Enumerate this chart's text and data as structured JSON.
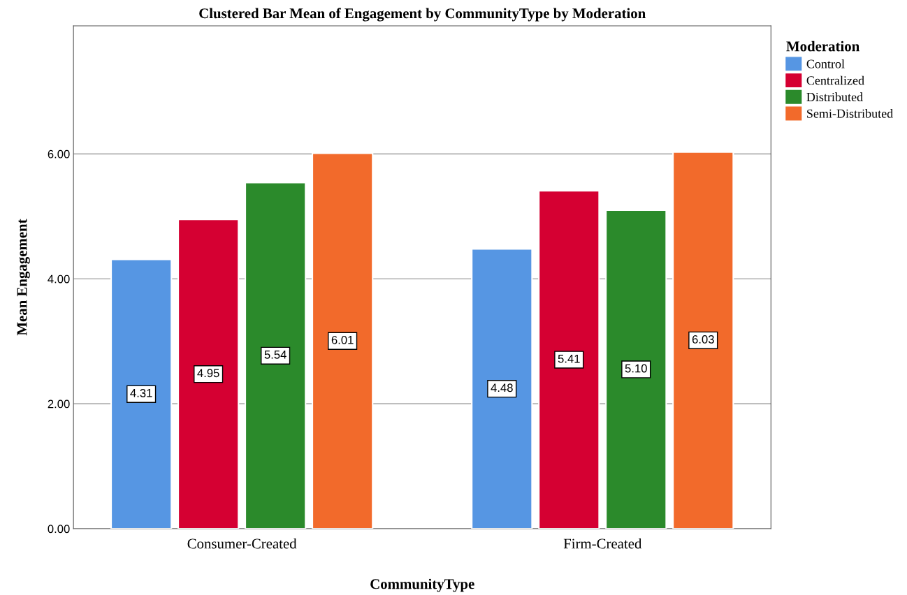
{
  "chart_data": {
    "type": "bar",
    "title": "Clustered Bar Mean of Engagement by CommunityType by Moderation",
    "xlabel": "CommunityType",
    "ylabel": "Mean Engagement",
    "legend_title": "Moderation",
    "categories": [
      "Consumer-Created",
      "Firm-Created"
    ],
    "series": [
      {
        "name": "Control",
        "color": "#5696e3",
        "values": [
          4.31,
          4.48
        ],
        "value_labels": [
          "4.31",
          "4.48"
        ]
      },
      {
        "name": "Centralized",
        "color": "#d50032",
        "values": [
          4.95,
          5.41
        ],
        "value_labels": [
          "4.95",
          "5.41"
        ]
      },
      {
        "name": "Distributed",
        "color": "#2b8a2b",
        "values": [
          5.54,
          5.1
        ],
        "value_labels": [
          "5.54",
          "5.10"
        ]
      },
      {
        "name": "Semi-Distributed",
        "color": "#f26a2b",
        "values": [
          6.01,
          6.03
        ],
        "value_labels": [
          "6.01",
          "6.03"
        ]
      }
    ],
    "ylim": [
      0,
      8.05
    ],
    "yticks": [
      {
        "value": 0,
        "label": "0.00"
      },
      {
        "value": 2,
        "label": "2.00"
      },
      {
        "value": 4,
        "label": "4.00"
      },
      {
        "value": 6,
        "label": "6.00"
      }
    ],
    "grid": "y",
    "legend": "top right"
  }
}
